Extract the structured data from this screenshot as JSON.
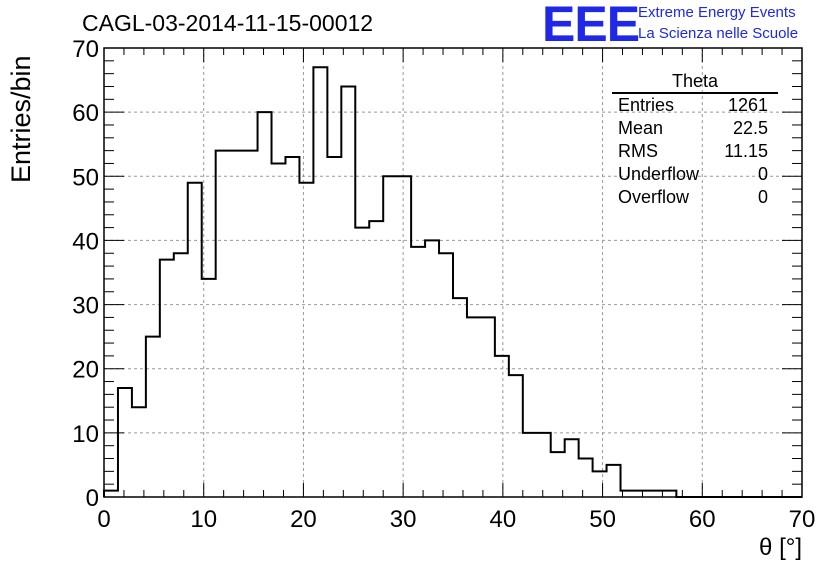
{
  "header": {
    "title": "CAGL-03-2014-11-15-00012",
    "logo_text": "EEE",
    "logo_line1": "Extreme Energy Events",
    "logo_line2": "La Scienza nelle Scuole",
    "logo_color": "#1e28e6"
  },
  "stats": {
    "title": "Theta",
    "rows": [
      {
        "label": "Entries",
        "value": "1261"
      },
      {
        "label": "Mean",
        "value": "22.5"
      },
      {
        "label": "RMS",
        "value": "11.15"
      },
      {
        "label": "Underflow",
        "value": "0"
      },
      {
        "label": "Overflow",
        "value": "0"
      }
    ]
  },
  "chart_data": {
    "type": "bar",
    "title": "CAGL-03-2014-11-15-00012",
    "xlabel": "θ [°]",
    "ylabel": "Entries/bin",
    "xlim": [
      0,
      70
    ],
    "ylim": [
      0,
      70
    ],
    "bin_width": 1.4,
    "bin_start": 0,
    "values": [
      1,
      17,
      14,
      25,
      37,
      38,
      49,
      34,
      54,
      54,
      54,
      60,
      52,
      53,
      49,
      67,
      53,
      64,
      42,
      43,
      50,
      50,
      39,
      40,
      38,
      31,
      28,
      28,
      22,
      19,
      10,
      10,
      7,
      9,
      6,
      4,
      5,
      1,
      1,
      1,
      1,
      0,
      0,
      0,
      0,
      0,
      0,
      0,
      0,
      0
    ],
    "xticks": [
      0,
      10,
      20,
      30,
      40,
      50,
      60,
      70
    ],
    "yticks": [
      0,
      10,
      20,
      30,
      40,
      50,
      60,
      70
    ],
    "grid": true,
    "line_color": "#000000"
  }
}
